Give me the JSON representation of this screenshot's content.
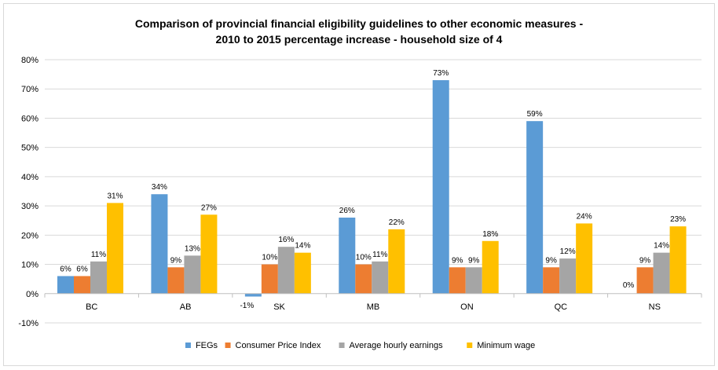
{
  "chart_data": {
    "type": "bar",
    "title": [
      "Comparison of provincial financial eligibility guidelines to other economic measures -",
      "2010 to 2015 percentage increase - household size of 4"
    ],
    "categories": [
      "BC",
      "AB",
      "SK",
      "MB",
      "ON",
      "QC",
      "NS"
    ],
    "series": [
      {
        "name": "FEGs",
        "color": "#5b9bd5",
        "values": [
          6,
          34,
          -1,
          26,
          73,
          59,
          0
        ],
        "labels": [
          "6%",
          "34%",
          "-1%",
          "26%",
          "73%",
          "59%",
          "0%"
        ]
      },
      {
        "name": "Consumer Price Index",
        "color": "#ed7d31",
        "values": [
          6,
          9,
          10,
          10,
          9,
          9,
          9
        ],
        "labels": [
          "6%",
          "9%",
          "10%",
          "10%",
          "9%",
          "9%",
          "9%"
        ]
      },
      {
        "name": "Average hourly earnings",
        "color": "#a5a5a5",
        "values": [
          11,
          13,
          16,
          11,
          9,
          12,
          14
        ],
        "labels": [
          "11%",
          "13%",
          "16%",
          "11%",
          "9%",
          "12%",
          "14%"
        ]
      },
      {
        "name": "Minimum wage",
        "color": "#ffc000",
        "values": [
          31,
          27,
          14,
          22,
          18,
          24,
          23
        ],
        "labels": [
          "31%",
          "27%",
          "14%",
          "22%",
          "18%",
          "24%",
          "23%"
        ]
      }
    ],
    "ylim": [
      -10,
      80
    ],
    "yticks": [
      -10,
      0,
      10,
      20,
      30,
      40,
      50,
      60,
      70,
      80
    ],
    "ytick_labels": [
      "-10%",
      "0%",
      "10%",
      "20%",
      "30%",
      "40%",
      "50%",
      "60%",
      "70%",
      "80%"
    ],
    "xlabel": "",
    "ylabel": "",
    "grid": true,
    "legend_position": "bottom"
  }
}
